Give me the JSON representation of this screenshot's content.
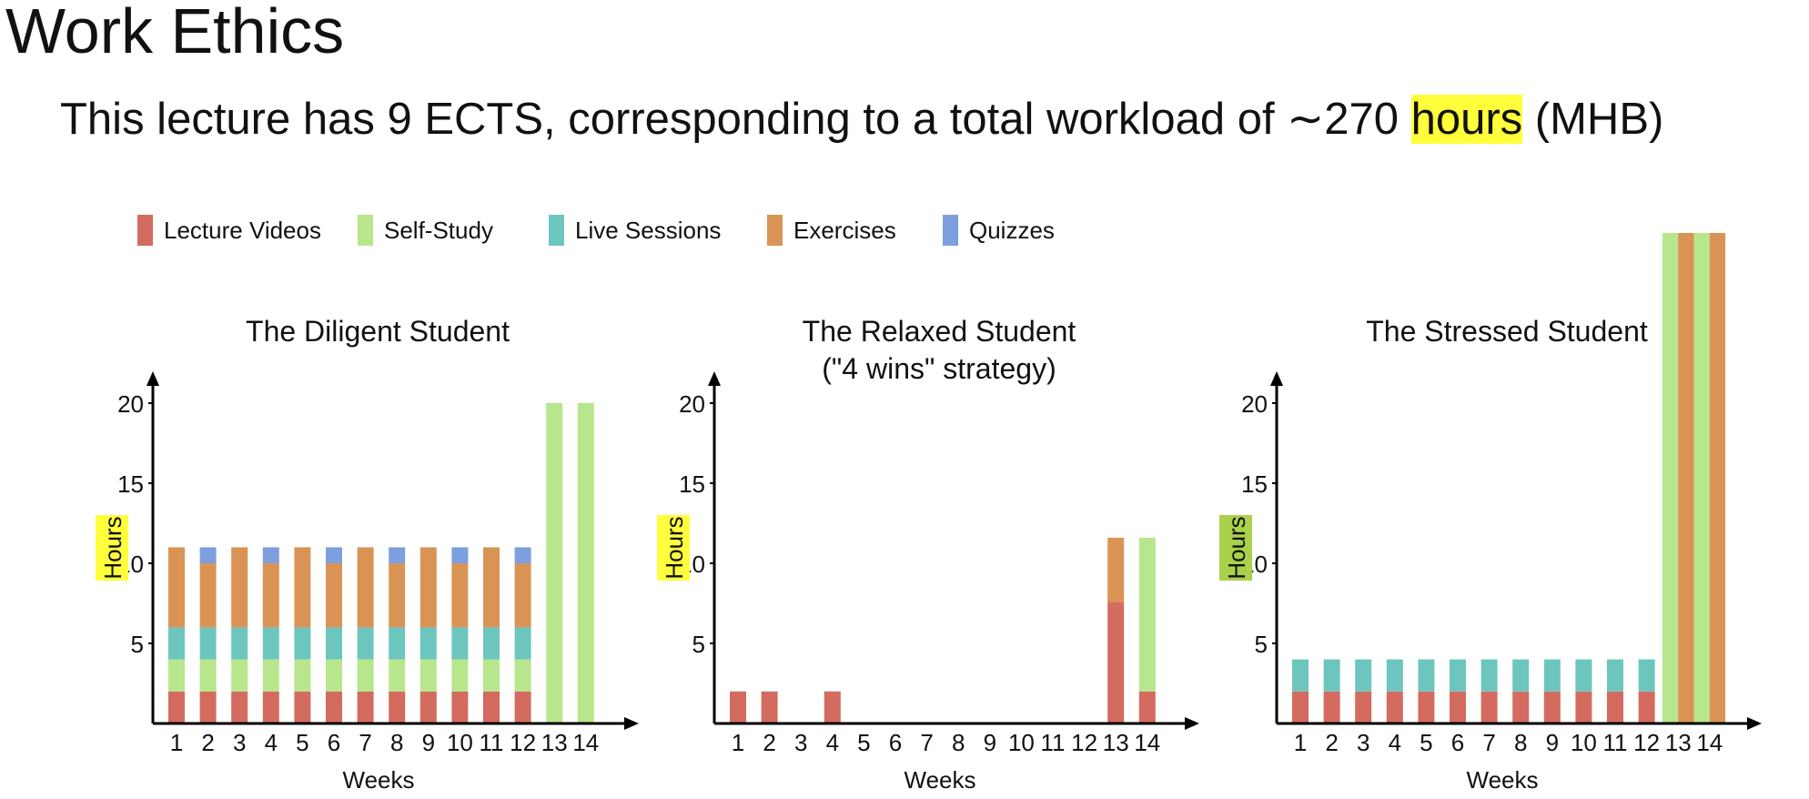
{
  "page": {
    "title": "Work Ethics",
    "subtitle_before": "This lecture has 9 ECTS, corresponding to a total workload of ∼270 ",
    "subtitle_highlight": "hours",
    "subtitle_after": " (MHB)"
  },
  "colors": {
    "lecture_videos": "#d46b5f",
    "self_study": "#b8e68c",
    "live_sessions": "#6cc6be",
    "exercises": "#d99455",
    "quizzes": "#7d9fde",
    "highlight_yellow": "#ffff3c",
    "highlight_green": "#a9d14a"
  },
  "legend": [
    {
      "label": "Lecture Videos",
      "color_key": "lecture_videos"
    },
    {
      "label": "Self-Study",
      "color_key": "self_study"
    },
    {
      "label": "Live Sessions",
      "color_key": "live_sessions"
    },
    {
      "label": "Exercises",
      "color_key": "exercises"
    },
    {
      "label": "Quizzes",
      "color_key": "quizzes"
    }
  ],
  "chart_data": [
    {
      "type": "bar",
      "title": "The Diligent Student",
      "xlabel": "Weeks",
      "ylabel": "Hours",
      "ylabel_highlight": "highlight_yellow",
      "ylim": [
        0,
        23
      ],
      "yticks": [
        5,
        10,
        15,
        20
      ],
      "categories": [
        "1",
        "2",
        "3",
        "4",
        "5",
        "6",
        "7",
        "8",
        "9",
        "10",
        "11",
        "12",
        "13",
        "14"
      ],
      "stacked": true,
      "grouped_bars": [
        [
          [
            {
              "s": "lecture_videos",
              "v": 2
            },
            {
              "s": "self_study",
              "v": 2
            },
            {
              "s": "live_sessions",
              "v": 2
            },
            {
              "s": "exercises",
              "v": 5
            }
          ]
        ],
        [
          [
            {
              "s": "lecture_videos",
              "v": 2
            },
            {
              "s": "self_study",
              "v": 2
            },
            {
              "s": "live_sessions",
              "v": 2
            },
            {
              "s": "exercises",
              "v": 4
            },
            {
              "s": "quizzes",
              "v": 1
            }
          ]
        ],
        [
          [
            {
              "s": "lecture_videos",
              "v": 2
            },
            {
              "s": "self_study",
              "v": 2
            },
            {
              "s": "live_sessions",
              "v": 2
            },
            {
              "s": "exercises",
              "v": 5
            }
          ]
        ],
        [
          [
            {
              "s": "lecture_videos",
              "v": 2
            },
            {
              "s": "self_study",
              "v": 2
            },
            {
              "s": "live_sessions",
              "v": 2
            },
            {
              "s": "exercises",
              "v": 4
            },
            {
              "s": "quizzes",
              "v": 1
            }
          ]
        ],
        [
          [
            {
              "s": "lecture_videos",
              "v": 2
            },
            {
              "s": "self_study",
              "v": 2
            },
            {
              "s": "live_sessions",
              "v": 2
            },
            {
              "s": "exercises",
              "v": 5
            }
          ]
        ],
        [
          [
            {
              "s": "lecture_videos",
              "v": 2
            },
            {
              "s": "self_study",
              "v": 2
            },
            {
              "s": "live_sessions",
              "v": 2
            },
            {
              "s": "exercises",
              "v": 4
            },
            {
              "s": "quizzes",
              "v": 1
            }
          ]
        ],
        [
          [
            {
              "s": "lecture_videos",
              "v": 2
            },
            {
              "s": "self_study",
              "v": 2
            },
            {
              "s": "live_sessions",
              "v": 2
            },
            {
              "s": "exercises",
              "v": 5
            }
          ]
        ],
        [
          [
            {
              "s": "lecture_videos",
              "v": 2
            },
            {
              "s": "self_study",
              "v": 2
            },
            {
              "s": "live_sessions",
              "v": 2
            },
            {
              "s": "exercises",
              "v": 4
            },
            {
              "s": "quizzes",
              "v": 1
            }
          ]
        ],
        [
          [
            {
              "s": "lecture_videos",
              "v": 2
            },
            {
              "s": "self_study",
              "v": 2
            },
            {
              "s": "live_sessions",
              "v": 2
            },
            {
              "s": "exercises",
              "v": 5
            }
          ]
        ],
        [
          [
            {
              "s": "lecture_videos",
              "v": 2
            },
            {
              "s": "self_study",
              "v": 2
            },
            {
              "s": "live_sessions",
              "v": 2
            },
            {
              "s": "exercises",
              "v": 4
            },
            {
              "s": "quizzes",
              "v": 1
            }
          ]
        ],
        [
          [
            {
              "s": "lecture_videos",
              "v": 2
            },
            {
              "s": "self_study",
              "v": 2
            },
            {
              "s": "live_sessions",
              "v": 2
            },
            {
              "s": "exercises",
              "v": 5
            }
          ]
        ],
        [
          [
            {
              "s": "lecture_videos",
              "v": 2
            },
            {
              "s": "self_study",
              "v": 2
            },
            {
              "s": "live_sessions",
              "v": 2
            },
            {
              "s": "exercises",
              "v": 4
            },
            {
              "s": "quizzes",
              "v": 1
            }
          ]
        ],
        [
          [
            {
              "s": "self_study",
              "v": 20
            }
          ]
        ],
        [
          [
            {
              "s": "self_study",
              "v": 20
            }
          ]
        ]
      ]
    },
    {
      "type": "bar",
      "title": "The Relaxed Student",
      "subtitle": "(\"4 wins\" strategy)",
      "xlabel": "Weeks",
      "ylabel": "Hours",
      "ylabel_highlight": "highlight_yellow",
      "ylim": [
        0,
        23
      ],
      "yticks": [
        5,
        10,
        15,
        20
      ],
      "categories": [
        "1",
        "2",
        "3",
        "4",
        "5",
        "6",
        "7",
        "8",
        "9",
        "10",
        "11",
        "12",
        "13",
        "14"
      ],
      "stacked": true,
      "grouped_bars": [
        [
          [
            {
              "s": "lecture_videos",
              "v": 2
            }
          ]
        ],
        [
          [
            {
              "s": "lecture_videos",
              "v": 2
            }
          ]
        ],
        [],
        [
          [
            {
              "s": "lecture_videos",
              "v": 2
            }
          ]
        ],
        [],
        [],
        [],
        [],
        [],
        [],
        [],
        [],
        [
          [
            {
              "s": "lecture_videos",
              "v": 7.6
            },
            {
              "s": "exercises",
              "v": 4
            }
          ]
        ],
        [
          [
            {
              "s": "lecture_videos",
              "v": 2
            },
            {
              "s": "self_study",
              "v": 9.6
            }
          ]
        ]
      ]
    },
    {
      "type": "bar",
      "title": "The Stressed Student",
      "xlabel": "Weeks",
      "ylabel": "Hours",
      "ylabel_highlight": "highlight_green",
      "ylim": [
        0,
        23
      ],
      "yticks": [
        5,
        10,
        15,
        20
      ],
      "categories": [
        "1",
        "2",
        "3",
        "4",
        "5",
        "6",
        "7",
        "8",
        "9",
        "10",
        "11",
        "12",
        "13",
        "14"
      ],
      "stacked": true,
      "grouped_bars": [
        [
          [
            {
              "s": "lecture_videos",
              "v": 2
            },
            {
              "s": "live_sessions",
              "v": 2
            }
          ]
        ],
        [
          [
            {
              "s": "lecture_videos",
              "v": 2
            },
            {
              "s": "live_sessions",
              "v": 2
            }
          ]
        ],
        [
          [
            {
              "s": "lecture_videos",
              "v": 2
            },
            {
              "s": "live_sessions",
              "v": 2
            }
          ]
        ],
        [
          [
            {
              "s": "lecture_videos",
              "v": 2
            },
            {
              "s": "live_sessions",
              "v": 2
            }
          ]
        ],
        [
          [
            {
              "s": "lecture_videos",
              "v": 2
            },
            {
              "s": "live_sessions",
              "v": 2
            }
          ]
        ],
        [
          [
            {
              "s": "lecture_videos",
              "v": 2
            },
            {
              "s": "live_sessions",
              "v": 2
            }
          ]
        ],
        [
          [
            {
              "s": "lecture_videos",
              "v": 2
            },
            {
              "s": "live_sessions",
              "v": 2
            }
          ]
        ],
        [
          [
            {
              "s": "lecture_videos",
              "v": 2
            },
            {
              "s": "live_sessions",
              "v": 2
            }
          ]
        ],
        [
          [
            {
              "s": "lecture_videos",
              "v": 2
            },
            {
              "s": "live_sessions",
              "v": 2
            }
          ]
        ],
        [
          [
            {
              "s": "lecture_videos",
              "v": 2
            },
            {
              "s": "live_sessions",
              "v": 2
            }
          ]
        ],
        [
          [
            {
              "s": "lecture_videos",
              "v": 2
            },
            {
              "s": "live_sessions",
              "v": 2
            }
          ]
        ],
        [
          [
            {
              "s": "lecture_videos",
              "v": 2
            },
            {
              "s": "live_sessions",
              "v": 2
            }
          ]
        ],
        [
          [
            {
              "s": "self_study",
              "v": 31
            }
          ],
          [
            {
              "s": "exercises",
              "v": 31
            }
          ]
        ],
        [
          [
            {
              "s": "self_study",
              "v": 31
            }
          ],
          [
            {
              "s": "exercises",
              "v": 31
            }
          ]
        ]
      ]
    }
  ]
}
